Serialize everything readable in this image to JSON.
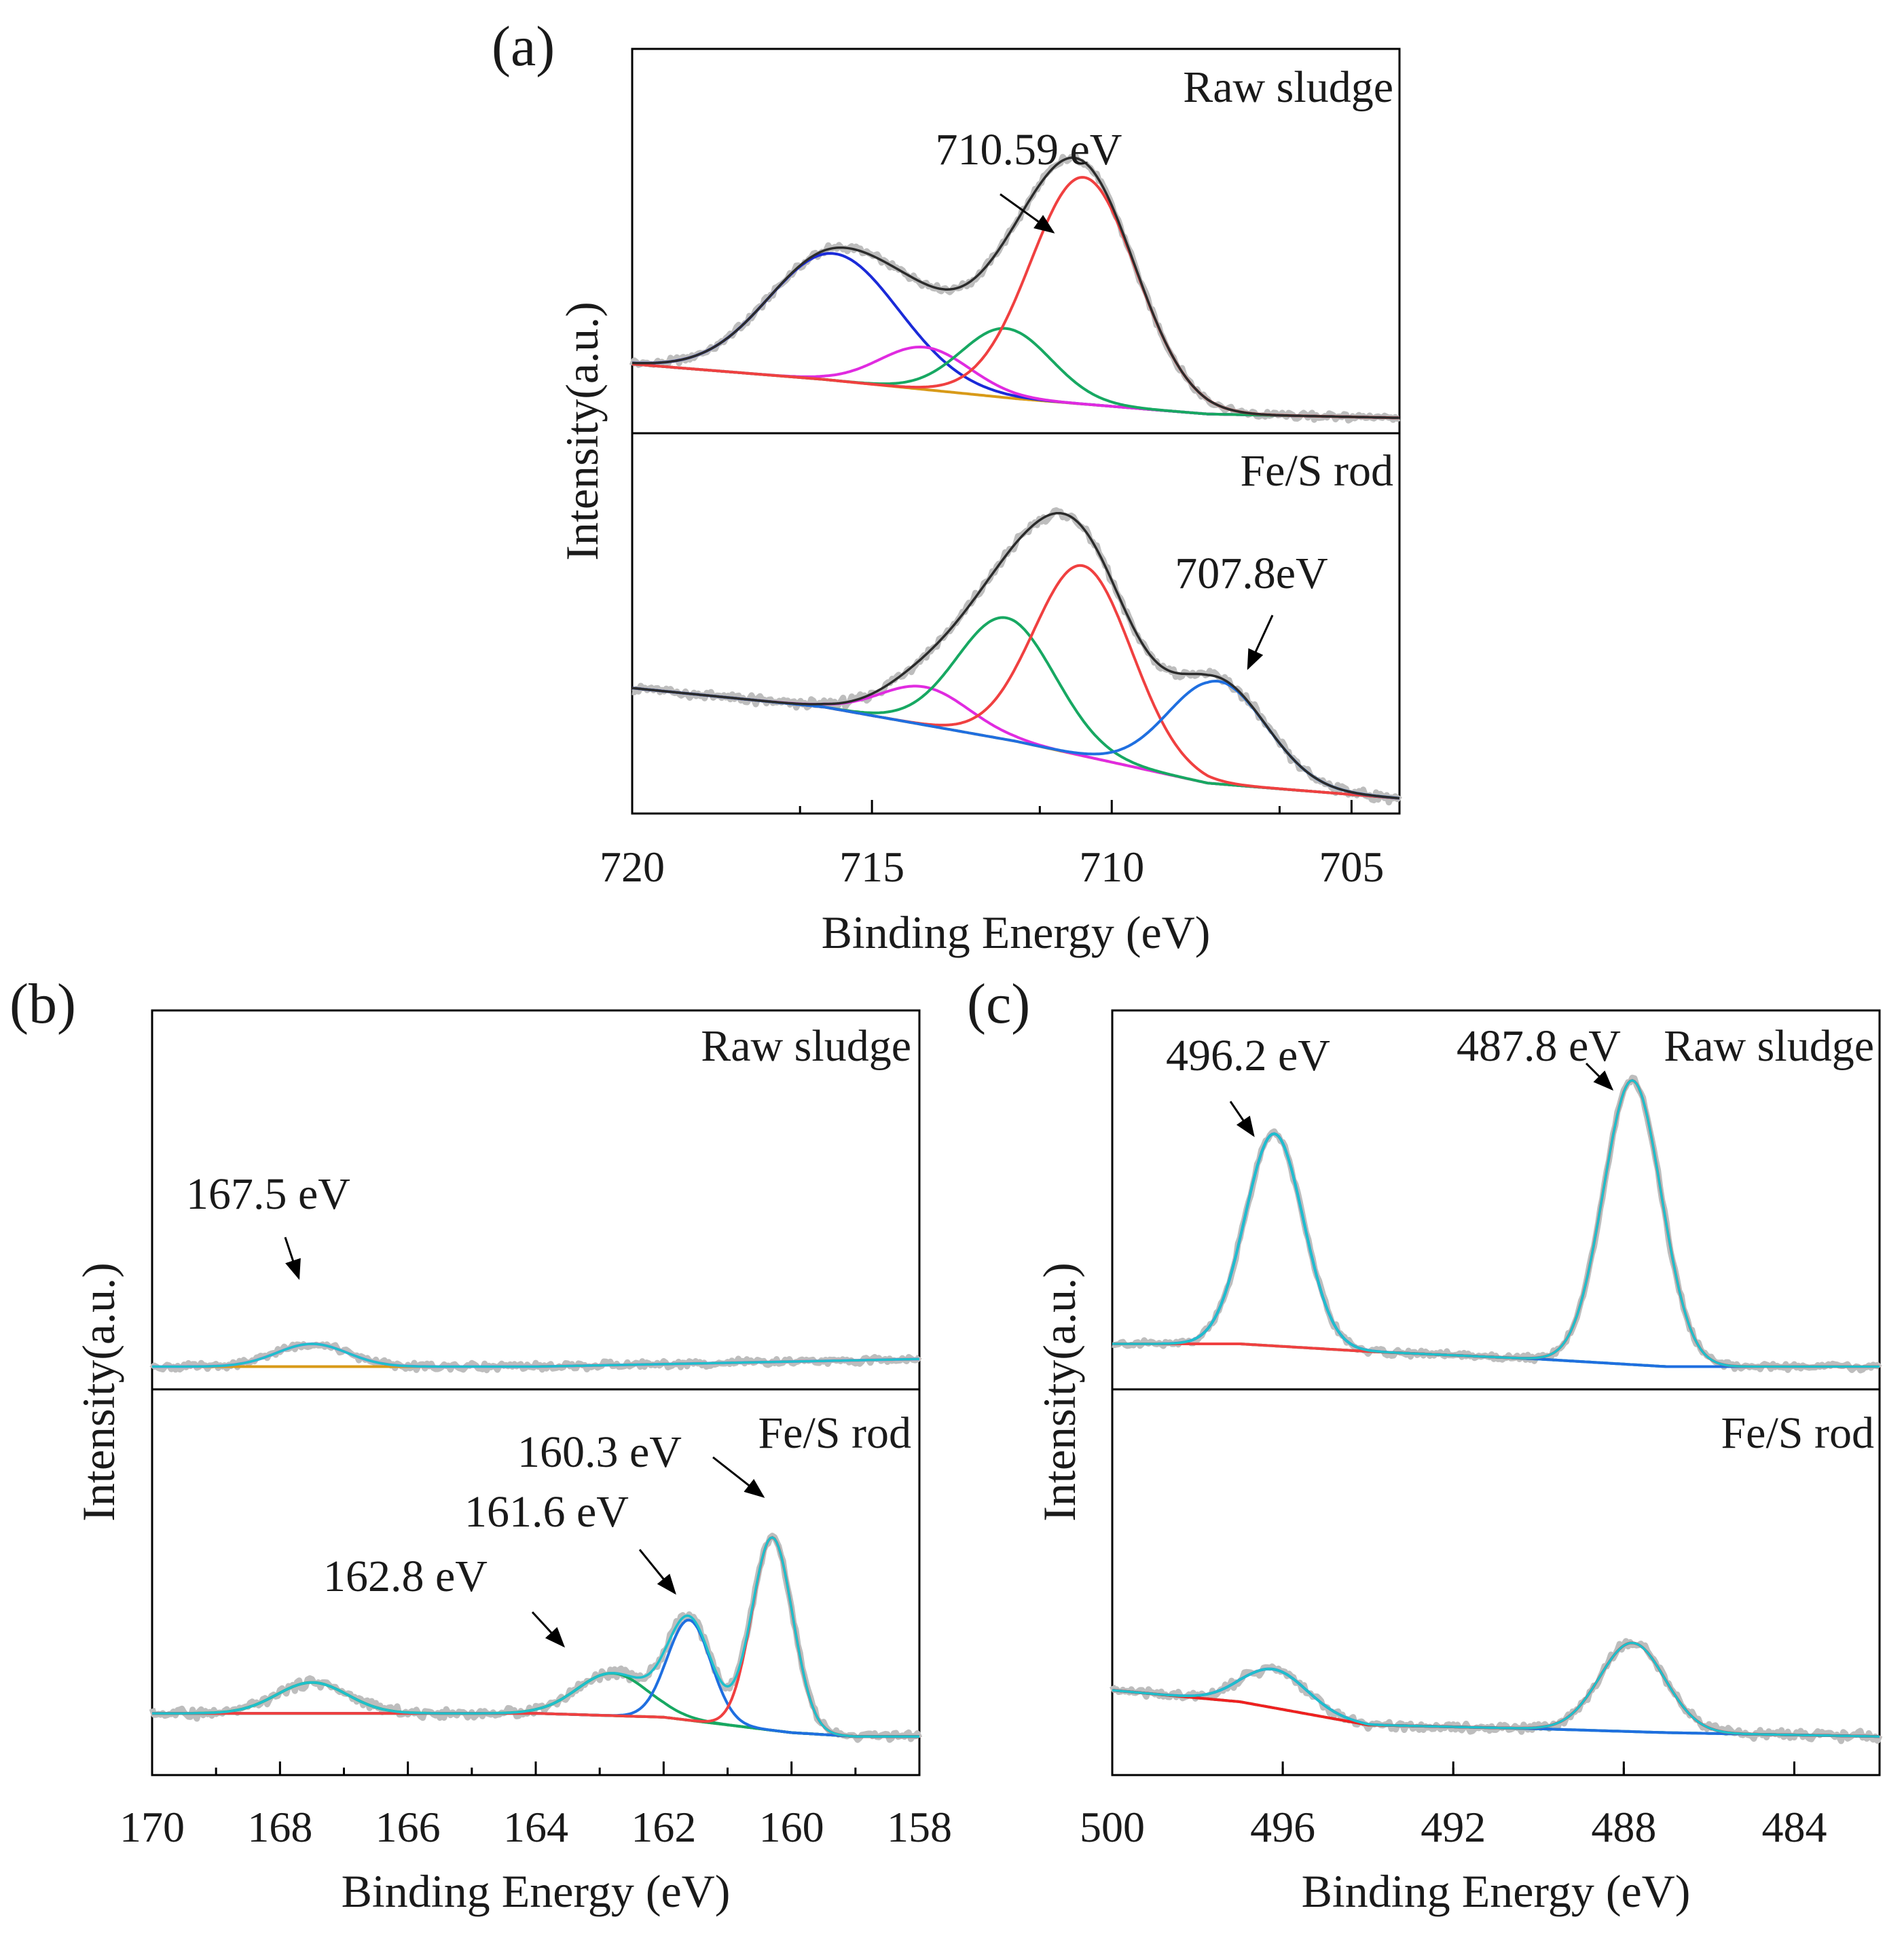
{
  "chart_data": [
    {
      "type": "line",
      "panel_label": "(a)",
      "xlabel": "Binding Energy (eV)",
      "ylabel": "Intensity(a.u.)",
      "xlim": [
        720,
        704
      ],
      "x_ticks": [
        720,
        715,
        710,
        705
      ],
      "ylim": [
        0,
        1
      ],
      "tick_direction": "in",
      "colors": {
        "raw": "#bdbdbd",
        "envelope": "#2b2b2b",
        "background": "#d89a18"
      },
      "subplots": [
        {
          "label": "Raw sludge",
          "background": {
            "x": [
              720,
              716,
              712,
              708,
              704
            ],
            "y": [
              0.18,
              0.14,
              0.09,
              0.05,
              0.04
            ]
          },
          "peaks": [
            {
              "center": 715.8,
              "height": 0.33,
              "fwhm": 3.2,
              "color": "#1a2ad8"
            },
            {
              "center": 713.9,
              "height": 0.11,
              "fwhm": 2.2,
              "color": "#e02be0"
            },
            {
              "center": 712.2,
              "height": 0.18,
              "fwhm": 2.2,
              "color": "#17a862"
            },
            {
              "center": 710.59,
              "height": 0.59,
              "fwhm": 2.6,
              "color": "#f04040"
            }
          ],
          "annotations": [
            {
              "text": "710.59 eV",
              "x": 710.59
            }
          ]
        },
        {
          "label": "Fe/S rod",
          "background": {
            "x": [
              720,
              716,
              712,
              708,
              704
            ],
            "y": [
              0.33,
              0.28,
              0.19,
              0.08,
              0.04
            ]
          },
          "peaks": [
            {
              "center": 713.9,
              "height": 0.1,
              "fwhm": 2.2,
              "color": "#e02be0"
            },
            {
              "center": 712.2,
              "height": 0.32,
              "fwhm": 2.4,
              "color": "#17a862"
            },
            {
              "center": 710.6,
              "height": 0.5,
              "fwhm": 2.4,
              "color": "#f04040"
            },
            {
              "center": 707.8,
              "height": 0.27,
              "fwhm": 2.4,
              "color": "#1f6fe0"
            }
          ],
          "annotations": [
            {
              "text": "707.8eV",
              "x": 707.8
            }
          ]
        }
      ]
    },
    {
      "type": "line",
      "panel_label": "(b)",
      "xlabel": "Binding Energy (eV)",
      "ylabel": "Intensity(a.u.)",
      "xlim": [
        170,
        158
      ],
      "x_ticks": [
        170,
        168,
        166,
        164,
        162,
        160,
        158
      ],
      "ylim": [
        0,
        1
      ],
      "tick_direction": "in",
      "colors": {
        "raw": "#bdbdbd",
        "envelope": "#1ec0cc",
        "background": "#d89a18"
      },
      "subplots": [
        {
          "label": "Raw sludge",
          "background": {
            "x": [
              170,
              164,
              158
            ],
            "y": [
              0.06,
              0.06,
              0.08
            ]
          },
          "peaks": [
            {
              "center": 167.5,
              "height": 0.06,
              "fwhm": 1.3,
              "color": "#b25ae0"
            }
          ],
          "annotations": [
            {
              "text": "167.5 eV",
              "x": 167.5
            }
          ]
        },
        {
          "label": "Fe/S rod",
          "background": {
            "x": [
              170,
              164,
              162,
              160,
              159,
              158
            ],
            "y": [
              0.16,
              0.16,
              0.15,
              0.11,
              0.1,
              0.1
            ]
          },
          "peaks": [
            {
              "center": 167.5,
              "height": 0.08,
              "fwhm": 1.3,
              "color": "#17a862"
            },
            {
              "center": 162.8,
              "height": 0.11,
              "fwhm": 1.3,
              "color": "#17a862"
            },
            {
              "center": 161.6,
              "height": 0.26,
              "fwhm": 0.8,
              "color": "#1f6fe0"
            },
            {
              "center": 160.3,
              "height": 0.5,
              "fwhm": 0.75,
              "color": "#f04040"
            }
          ],
          "annotations": [
            {
              "text": "160.3 eV",
              "x": 160.3
            },
            {
              "text": "161.6 eV",
              "x": 161.6
            },
            {
              "text": "162.8 eV",
              "x": 162.8
            }
          ]
        }
      ]
    },
    {
      "type": "line",
      "panel_label": "(c)",
      "xlabel": "Binding Energy (eV)",
      "ylabel": "Intensity(a.u.)",
      "xlim": [
        500,
        482
      ],
      "x_ticks": [
        500,
        496,
        492,
        488,
        484
      ],
      "ylim": [
        0,
        1
      ],
      "tick_direction": "in",
      "colors": {
        "raw": "#bdbdbd",
        "envelope": "#1ec0cc",
        "background": "#17a862"
      },
      "subplots": [
        {
          "label": "Raw sludge",
          "background": {
            "x": [
              500,
              497,
              494,
              490,
              487,
              482
            ],
            "y": [
              0.12,
              0.12,
              0.1,
              0.08,
              0.06,
              0.06
            ]
          },
          "peaks": [
            {
              "center": 496.2,
              "height": 0.56,
              "fwhm": 1.6,
              "color": "#1f6fe0"
            },
            {
              "center": 487.8,
              "height": 0.75,
              "fwhm": 1.6,
              "color": "#f04040"
            }
          ],
          "annotations": [
            {
              "text": "496.2 eV",
              "x": 496.2
            },
            {
              "text": "487.8 eV",
              "x": 487.8
            }
          ]
        },
        {
          "label": "Fe/S rod",
          "background": {
            "x": [
              500,
              497,
              494,
              490,
              487,
              482
            ],
            "y": [
              0.22,
              0.19,
              0.13,
              0.12,
              0.11,
              0.1
            ]
          },
          "peaks": [
            {
              "center": 496.2,
              "height": 0.1,
              "fwhm": 1.8,
              "color": "#1f6fe0"
            },
            {
              "center": 487.8,
              "height": 0.23,
              "fwhm": 1.8,
              "color": "#f02020"
            }
          ],
          "annotations": []
        }
      ]
    }
  ]
}
